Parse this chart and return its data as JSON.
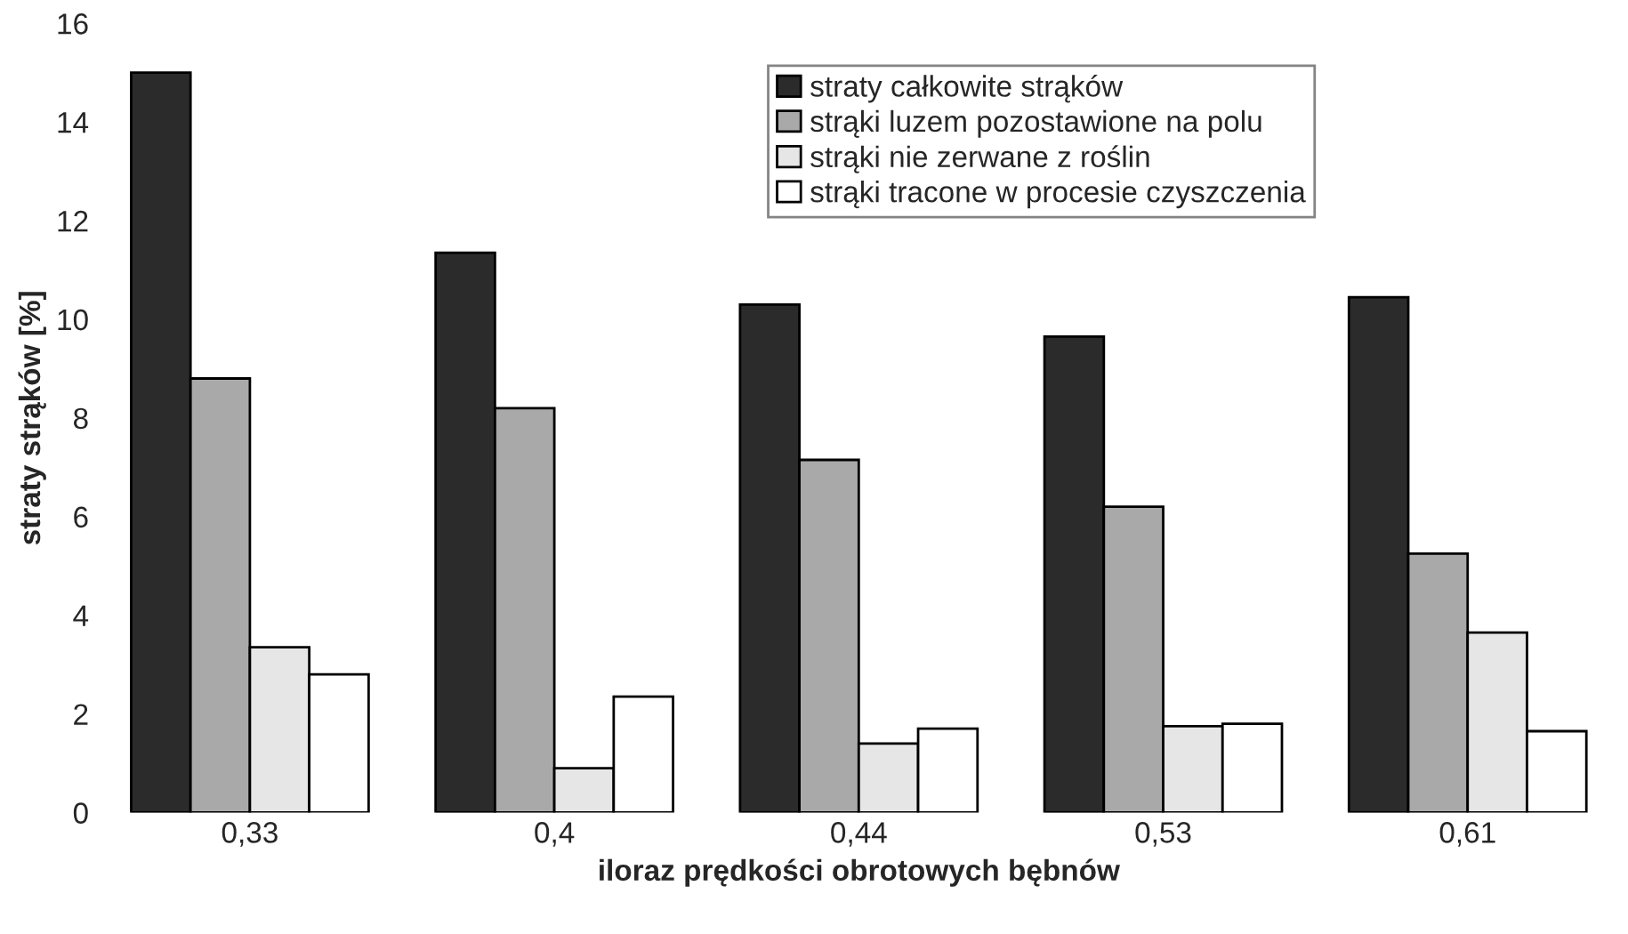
{
  "chart_data": {
    "type": "bar",
    "xlabel": "iloraz prędkości obrotowych bębnów",
    "ylabel": "straty strąków [%]",
    "categories": [
      "0,33",
      "0,4",
      "0,44",
      "0,53",
      "0,61"
    ],
    "series": [
      {
        "name": "straty całkowite strąków",
        "color": "#2b2b2b",
        "values": [
          15.0,
          11.35,
          10.3,
          9.65,
          10.45
        ]
      },
      {
        "name": "strąki luzem pozostawione na polu",
        "color": "#a9a9a9",
        "values": [
          8.8,
          8.2,
          7.15,
          6.2,
          5.25
        ]
      },
      {
        "name": "strąki nie zerwane z roślin",
        "color": "#e6e6e6",
        "values": [
          3.35,
          0.9,
          1.4,
          1.75,
          3.65
        ]
      },
      {
        "name": "strąki tracone w procesie czyszczenia",
        "color": "#ffffff",
        "values": [
          2.8,
          2.35,
          1.7,
          1.8,
          1.65
        ]
      }
    ],
    "ylim": [
      0,
      16
    ],
    "yticks": [
      0,
      2,
      4,
      6,
      8,
      10,
      12,
      14,
      16
    ],
    "grid": false,
    "legend": "top"
  }
}
